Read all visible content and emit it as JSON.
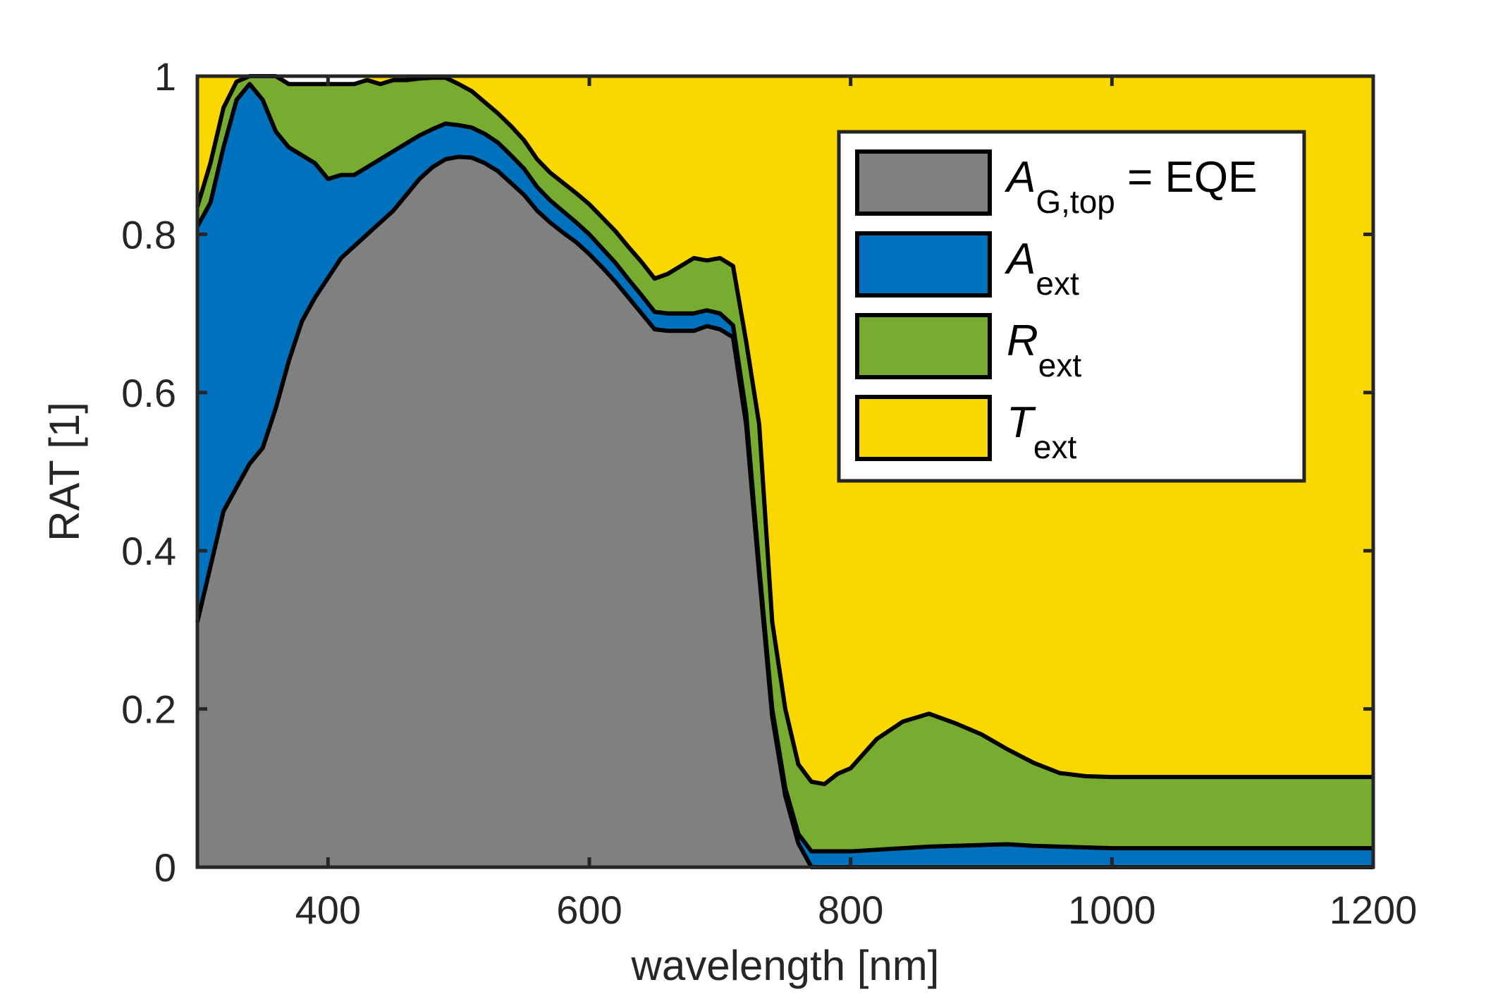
{
  "chart_data": {
    "type": "area",
    "xlabel": "wavelength [nm]",
    "ylabel": "RAT [1]",
    "xlim": [
      300,
      1200
    ],
    "ylim": [
      0,
      1
    ],
    "xticks": [
      400,
      600,
      800,
      1000,
      1200
    ],
    "yticks": [
      0,
      0.2,
      0.4,
      0.6,
      0.8,
      1
    ],
    "ytick_labels": [
      "0",
      "0.2",
      "0.4",
      "0.6",
      "0.8",
      "1"
    ],
    "grid": false,
    "legend_placement": "top-right",
    "stacked": true,
    "x": [
      300,
      310,
      320,
      330,
      340,
      350,
      360,
      370,
      380,
      390,
      400,
      410,
      420,
      430,
      440,
      450,
      460,
      470,
      480,
      490,
      500,
      510,
      520,
      530,
      540,
      550,
      560,
      570,
      580,
      590,
      600,
      610,
      620,
      630,
      640,
      650,
      660,
      670,
      680,
      690,
      700,
      710,
      720,
      730,
      740,
      750,
      760,
      770,
      780,
      790,
      800,
      820,
      840,
      860,
      880,
      900,
      920,
      940,
      960,
      980,
      1000,
      1050,
      1100,
      1150,
      1200
    ],
    "series": [
      {
        "legend_main": "A",
        "legend_sub": "G,top",
        "legend_suffix": " = EQE",
        "color": "#808080",
        "values": [
          0.31,
          0.38,
          0.45,
          0.48,
          0.51,
          0.53,
          0.58,
          0.64,
          0.69,
          0.72,
          0.745,
          0.77,
          0.785,
          0.8,
          0.815,
          0.83,
          0.85,
          0.87,
          0.885,
          0.895,
          0.898,
          0.897,
          0.89,
          0.88,
          0.865,
          0.85,
          0.83,
          0.815,
          0.802,
          0.79,
          0.775,
          0.758,
          0.74,
          0.72,
          0.7,
          0.68,
          0.678,
          0.678,
          0.678,
          0.684,
          0.68,
          0.67,
          0.56,
          0.37,
          0.19,
          0.09,
          0.03,
          0.0,
          0.0,
          0.0,
          0.0,
          0.0,
          0.0,
          0.0,
          0.0,
          0.0,
          0.0,
          0.0,
          0.0,
          0.0,
          0.0,
          0.0,
          0.0,
          0.0,
          0.0
        ]
      },
      {
        "legend_main": "A",
        "legend_sub": "ext",
        "legend_suffix": "",
        "color": "#0072bd",
        "values": [
          0.5,
          0.46,
          0.46,
          0.49,
          0.48,
          0.44,
          0.35,
          0.27,
          0.21,
          0.17,
          0.125,
          0.105,
          0.09,
          0.085,
          0.08,
          0.075,
          0.065,
          0.055,
          0.048,
          0.045,
          0.04,
          0.038,
          0.037,
          0.036,
          0.035,
          0.033,
          0.03,
          0.028,
          0.027,
          0.025,
          0.025,
          0.024,
          0.024,
          0.023,
          0.023,
          0.022,
          0.022,
          0.022,
          0.022,
          0.02,
          0.02,
          0.015,
          0.015,
          0.01,
          0.01,
          0.01,
          0.012,
          0.02,
          0.02,
          0.02,
          0.02,
          0.022,
          0.024,
          0.026,
          0.027,
          0.028,
          0.029,
          0.027,
          0.026,
          0.025,
          0.024,
          0.024,
          0.024,
          0.024,
          0.024
        ]
      },
      {
        "legend_main": "R",
        "legend_sub": "ext",
        "legend_suffix": "",
        "color": "#77ac30",
        "values": [
          0.025,
          0.05,
          0.05,
          0.023,
          0.01,
          0.03,
          0.07,
          0.08,
          0.09,
          0.1,
          0.12,
          0.115,
          0.115,
          0.11,
          0.095,
          0.09,
          0.08,
          0.072,
          0.065,
          0.058,
          0.052,
          0.046,
          0.04,
          0.037,
          0.037,
          0.036,
          0.035,
          0.035,
          0.036,
          0.037,
          0.038,
          0.039,
          0.04,
          0.041,
          0.042,
          0.042,
          0.05,
          0.06,
          0.07,
          0.063,
          0.07,
          0.075,
          0.09,
          0.18,
          0.11,
          0.1,
          0.088,
          0.088,
          0.085,
          0.098,
          0.105,
          0.14,
          0.16,
          0.168,
          0.155,
          0.14,
          0.12,
          0.105,
          0.093,
          0.09,
          0.09,
          0.09,
          0.09,
          0.09,
          0.09
        ]
      },
      {
        "legend_main": "T",
        "legend_sub": "ext",
        "legend_suffix": "",
        "color": "#fbd700",
        "values": [
          0.165,
          0.11,
          0.04,
          0.007,
          0.0,
          0.0,
          0.0,
          0.0,
          0.0,
          0.0,
          0.0,
          0.0,
          0.0,
          0.005,
          0.01,
          0.005,
          0.005,
          0.003,
          0.002,
          0.002,
          0.01,
          0.019,
          0.033,
          0.047,
          0.063,
          0.081,
          0.105,
          0.122,
          0.135,
          0.148,
          0.162,
          0.179,
          0.196,
          0.216,
          0.235,
          0.256,
          0.25,
          0.24,
          0.23,
          0.233,
          0.23,
          0.24,
          0.335,
          0.44,
          0.69,
          0.8,
          0.87,
          0.892,
          0.895,
          0.882,
          0.875,
          0.838,
          0.816,
          0.806,
          0.818,
          0.832,
          0.851,
          0.868,
          0.881,
          0.885,
          0.886,
          0.886,
          0.886,
          0.886,
          0.886
        ]
      }
    ]
  }
}
